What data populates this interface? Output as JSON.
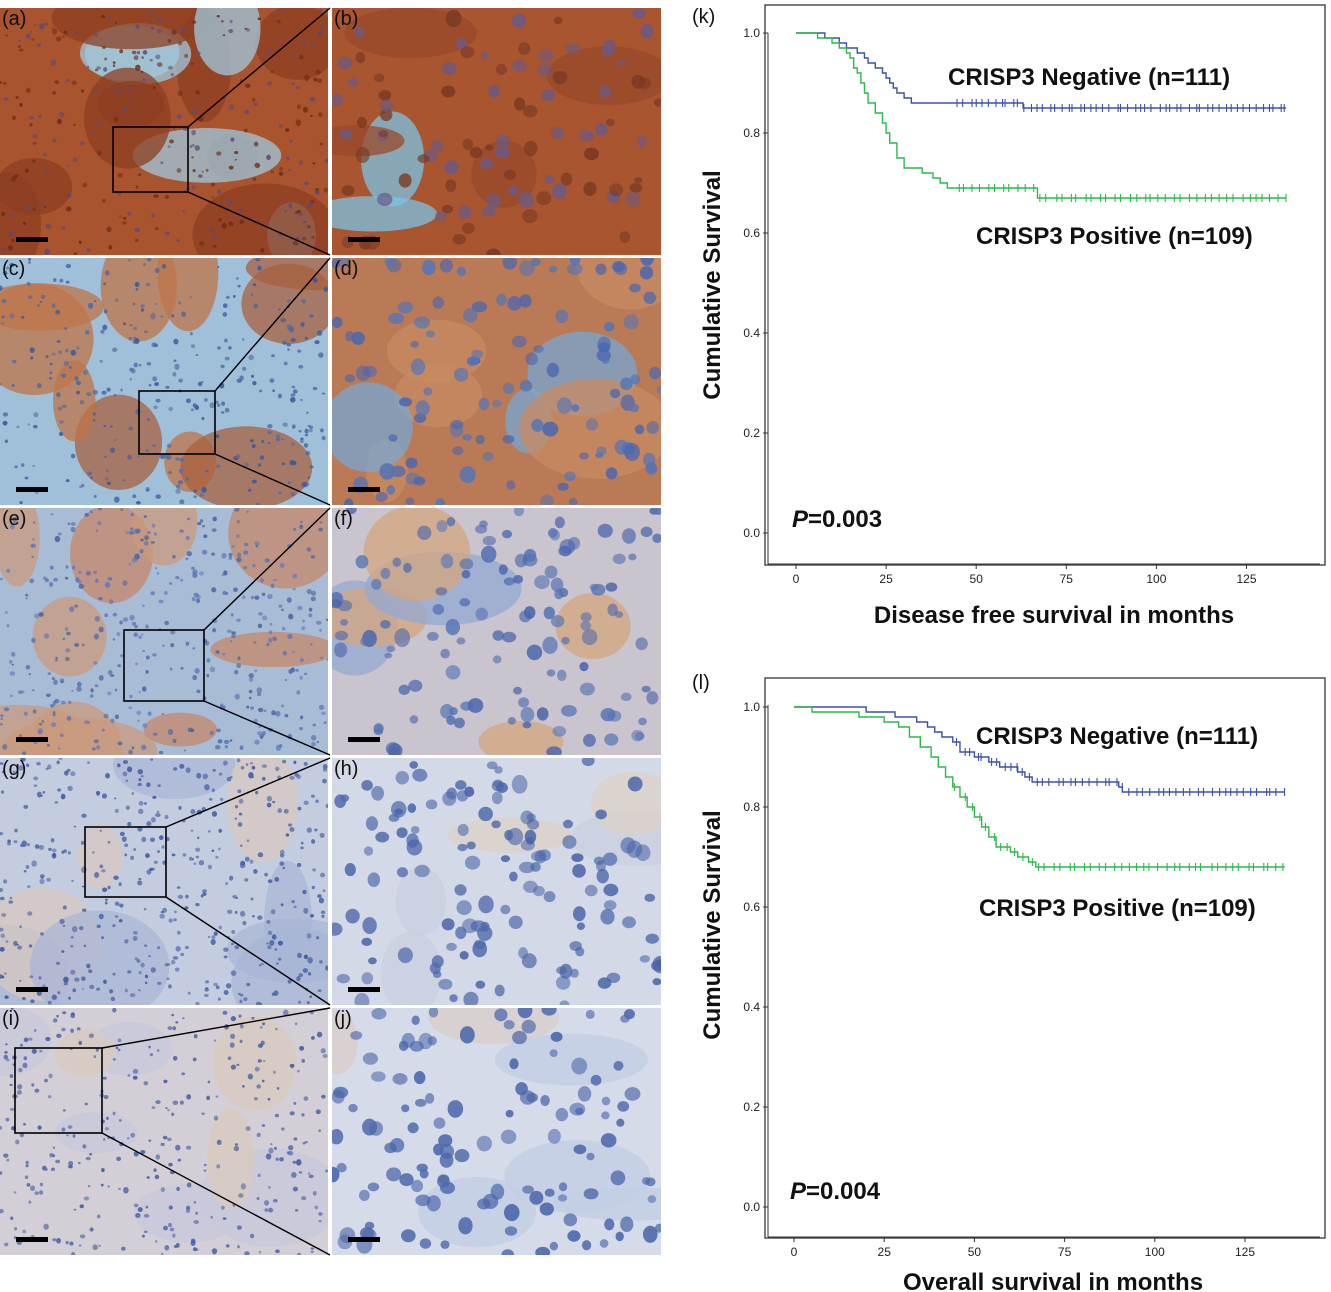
{
  "micrographs": [
    {
      "label": "(a)",
      "tone": "brown-strong"
    },
    {
      "label": "(b)",
      "tone": "brown-strong-zoom"
    },
    {
      "label": "(c)",
      "tone": "brown-medium"
    },
    {
      "label": "(d)",
      "tone": "brown-medium-zoom"
    },
    {
      "label": "(e)",
      "tone": "brown-weak"
    },
    {
      "label": "(f)",
      "tone": "brown-weak-zoom"
    },
    {
      "label": "(g)",
      "tone": "blue"
    },
    {
      "label": "(h)",
      "tone": "blue-zoom"
    },
    {
      "label": "(i)",
      "tone": "blue-pale"
    },
    {
      "label": "(j)",
      "tone": "blue-pale-zoom"
    }
  ],
  "colors": {
    "negative": "#3a52a8",
    "positive": "#2db84a",
    "stain_brown": "#a4532f",
    "stroma_blue": "#9fc3dc"
  },
  "chart_data": [
    {
      "panel_label": "(k)",
      "type": "line",
      "xlabel": "Disease free survival in months",
      "ylabel": "Cumulative Survival",
      "xlim": [
        0,
        140
      ],
      "ylim": [
        0,
        1.0
      ],
      "xticks": [
        "0",
        "25",
        "50",
        "75",
        "100",
        "125"
      ],
      "yticks": [
        "0.0",
        "0.2",
        "0.4",
        "0.6",
        "0.8",
        "1.0"
      ],
      "pvalue_prefix": "P",
      "pvalue_text": "=0.003",
      "series": [
        {
          "name": "CRISP3 Negative (n=111)",
          "color": "#3a52a8",
          "steps": [
            [
              0,
              1.0
            ],
            [
              8,
              0.99
            ],
            [
              12,
              0.98
            ],
            [
              14,
              0.97
            ],
            [
              17,
              0.96
            ],
            [
              19,
              0.95
            ],
            [
              20,
              0.94
            ],
            [
              22,
              0.93
            ],
            [
              24,
              0.92
            ],
            [
              25,
              0.91
            ],
            [
              26,
              0.9
            ],
            [
              27,
              0.89
            ],
            [
              28,
              0.88
            ],
            [
              30,
              0.87
            ],
            [
              32,
              0.86
            ],
            [
              63,
              0.85
            ],
            [
              136,
              0.85
            ]
          ],
          "censor_start": 45,
          "censor_end": 136,
          "censor_count": 55
        },
        {
          "name": "CRISP3 Positive (n=109)",
          "color": "#2db84a",
          "steps": [
            [
              0,
              1.0
            ],
            [
              6,
              0.99
            ],
            [
              10,
              0.98
            ],
            [
              12,
              0.97
            ],
            [
              14,
              0.96
            ],
            [
              15,
              0.95
            ],
            [
              16,
              0.93
            ],
            [
              17,
              0.92
            ],
            [
              18,
              0.9
            ],
            [
              19,
              0.88
            ],
            [
              20,
              0.86
            ],
            [
              22,
              0.84
            ],
            [
              24,
              0.82
            ],
            [
              25,
              0.8
            ],
            [
              26,
              0.78
            ],
            [
              28,
              0.75
            ],
            [
              30,
              0.73
            ],
            [
              35,
              0.72
            ],
            [
              38,
              0.71
            ],
            [
              40,
              0.7
            ],
            [
              42,
              0.69
            ],
            [
              67,
              0.67
            ],
            [
              136,
              0.67
            ]
          ],
          "censor_start": 45,
          "censor_end": 136,
          "censor_count": 45
        }
      ]
    },
    {
      "panel_label": "(l)",
      "type": "line",
      "xlabel": "Overall survival in months",
      "ylabel": "Cumulative Survival",
      "xlim": [
        0,
        140
      ],
      "ylim": [
        0,
        1.0
      ],
      "xticks": [
        "0",
        "25",
        "50",
        "75",
        "100",
        "125"
      ],
      "yticks": [
        "0.0",
        "0.2",
        "0.4",
        "0.6",
        "0.8",
        "1.0"
      ],
      "pvalue_prefix": "P",
      "pvalue_text": "=0.004",
      "series": [
        {
          "name": "CRISP3 Negative (n=111)",
          "color": "#3a52a8",
          "steps": [
            [
              0,
              1.0
            ],
            [
              20,
              0.99
            ],
            [
              28,
              0.98
            ],
            [
              34,
              0.97
            ],
            [
              37,
              0.96
            ],
            [
              39,
              0.95
            ],
            [
              41,
              0.94
            ],
            [
              44,
              0.93
            ],
            [
              46,
              0.91
            ],
            [
              50,
              0.9
            ],
            [
              54,
              0.89
            ],
            [
              57,
              0.88
            ],
            [
              62,
              0.87
            ],
            [
              64,
              0.86
            ],
            [
              66,
              0.85
            ],
            [
              90,
              0.84
            ],
            [
              91,
              0.83
            ],
            [
              136,
              0.83
            ]
          ],
          "censor_start": 45,
          "censor_end": 136,
          "censor_count": 50
        },
        {
          "name": "CRISP3 Positive (n=109)",
          "color": "#2db84a",
          "steps": [
            [
              0,
              1.0
            ],
            [
              5,
              0.99
            ],
            [
              18,
              0.98
            ],
            [
              25,
              0.97
            ],
            [
              29,
              0.96
            ],
            [
              32,
              0.94
            ],
            [
              35,
              0.92
            ],
            [
              38,
              0.9
            ],
            [
              40,
              0.88
            ],
            [
              42,
              0.86
            ],
            [
              44,
              0.84
            ],
            [
              46,
              0.82
            ],
            [
              48,
              0.8
            ],
            [
              50,
              0.78
            ],
            [
              52,
              0.76
            ],
            [
              54,
              0.74
            ],
            [
              56,
              0.72
            ],
            [
              60,
              0.71
            ],
            [
              62,
              0.7
            ],
            [
              65,
              0.69
            ],
            [
              67,
              0.68
            ],
            [
              136,
              0.68
            ]
          ],
          "censor_start": 45,
          "censor_end": 136,
          "censor_count": 45
        }
      ]
    }
  ]
}
